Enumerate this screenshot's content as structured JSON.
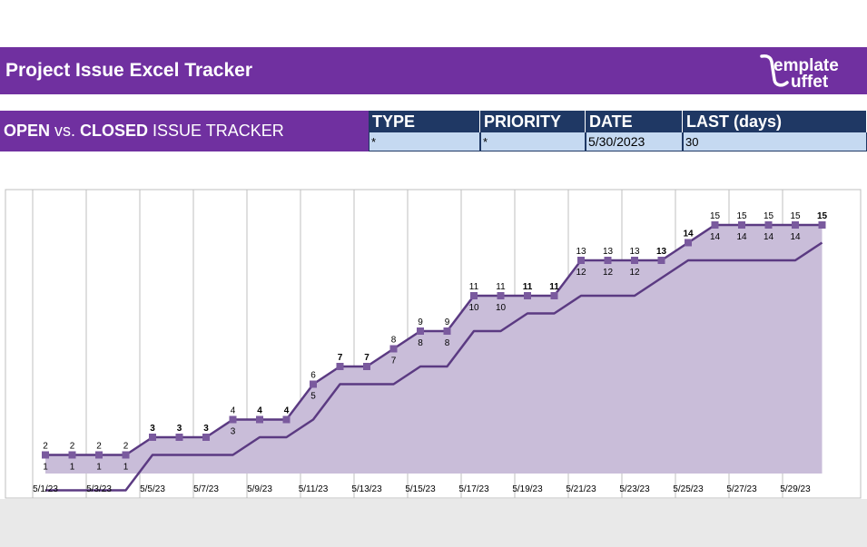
{
  "header": {
    "title": "Project Issue Excel Tracker",
    "logo_text_top": "emplate",
    "logo_text_bottom": "uffet"
  },
  "subheader": {
    "open": "OPEN",
    "vs": " vs. ",
    "closed": "CLOSED",
    "rest": " ISSUE TRACKER"
  },
  "filters": [
    {
      "label": "TYPE",
      "value": "*"
    },
    {
      "label": "PRIORITY",
      "value": "*"
    },
    {
      "label": "DATE",
      "value": "5/30/2023"
    },
    {
      "label": "LAST (days)",
      "value": "30"
    }
  ],
  "colors": {
    "purple": "#7030a0",
    "navy": "#1f3864",
    "filter_value_bg": "#c5d9f1",
    "line": "#5b3a82",
    "area_fill": "#c9bdd9",
    "marker": "#7a5a9e"
  },
  "chart_data": {
    "type": "area",
    "x": [
      "5/1/23",
      "5/2/23",
      "5/3/23",
      "5/4/23",
      "5/5/23",
      "5/6/23",
      "5/7/23",
      "5/8/23",
      "5/9/23",
      "5/10/23",
      "5/11/23",
      "5/12/23",
      "5/13/23",
      "5/14/23",
      "5/15/23",
      "5/16/23",
      "5/17/23",
      "5/18/23",
      "5/19/23",
      "5/20/23",
      "5/21/23",
      "5/22/23",
      "5/23/23",
      "5/24/23",
      "5/25/23",
      "5/26/23",
      "5/27/23",
      "5/28/23",
      "5/29/23",
      "5/30/23"
    ],
    "tick_labels": [
      "5/1/23",
      "5/3/23",
      "5/5/23",
      "5/7/23",
      "5/9/23",
      "5/11/23",
      "5/13/23",
      "5/15/23",
      "5/17/23",
      "5/19/23",
      "5/21/23",
      "5/23/23",
      "5/25/23",
      "5/27/23",
      "5/29/23"
    ],
    "series": [
      {
        "values": [
          2,
          2,
          2,
          2,
          3,
          3,
          3,
          4,
          4,
          4,
          6,
          7,
          7,
          8,
          9,
          9,
          11,
          11,
          11,
          11,
          13,
          13,
          13,
          13,
          14,
          15,
          15,
          15,
          15,
          15
        ]
      },
      {
        "values": [
          1,
          1,
          1,
          1,
          3,
          3,
          3,
          3,
          4,
          4,
          5,
          7,
          7,
          7,
          8,
          8,
          10,
          10,
          11,
          11,
          12,
          12,
          12,
          13,
          14,
          14,
          14,
          14,
          14,
          15
        ]
      }
    ],
    "ylim": [
      1,
      17
    ],
    "grid": "vertical"
  }
}
